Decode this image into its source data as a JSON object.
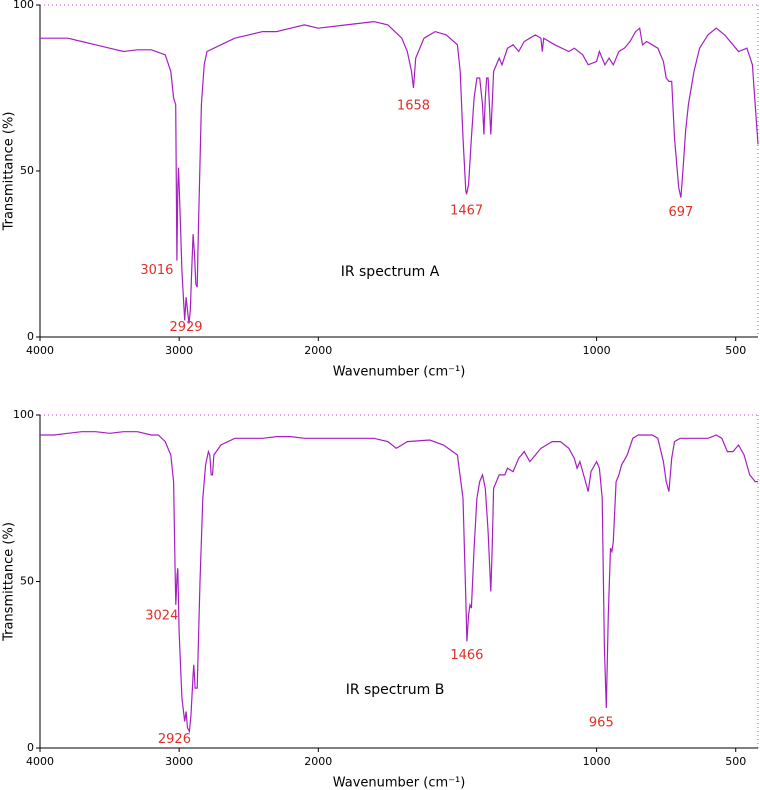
{
  "chart_data": [
    {
      "type": "line",
      "label": "IR spectrum A",
      "xlabel": "Wavenumber (cm⁻¹)",
      "ylabel": "Transmittance (%)",
      "color": "#a51fc2",
      "xlim": [
        4000,
        420
      ],
      "xticks": [
        4000,
        3000,
        2000,
        1000,
        500
      ],
      "x_scale_change": {
        "at": 2000,
        "factor": 2
      },
      "ylim": [
        0,
        100
      ],
      "yticks": [
        0,
        50,
        100
      ],
      "peak_labels": [
        3016,
        2929,
        1658,
        1467,
        697
      ],
      "x": [
        4000,
        3900,
        3800,
        3700,
        3600,
        3500,
        3400,
        3300,
        3200,
        3100,
        3060,
        3040,
        3025,
        3016,
        3010,
        3005,
        2995,
        2980,
        2960,
        2950,
        2940,
        2929,
        2920,
        2910,
        2900,
        2890,
        2880,
        2870,
        2860,
        2840,
        2820,
        2800,
        2700,
        2600,
        2500,
        2400,
        2300,
        2200,
        2100,
        2000,
        1900,
        1800,
        1750,
        1700,
        1680,
        1665,
        1658,
        1650,
        1620,
        1580,
        1540,
        1500,
        1490,
        1480,
        1470,
        1467,
        1460,
        1450,
        1440,
        1430,
        1420,
        1410,
        1405,
        1400,
        1395,
        1390,
        1385,
        1380,
        1375,
        1370,
        1350,
        1340,
        1320,
        1300,
        1280,
        1260,
        1240,
        1220,
        1200,
        1195,
        1190,
        1150,
        1100,
        1080,
        1050,
        1030,
        1000,
        990,
        970,
        955,
        940,
        920,
        900,
        880,
        860,
        845,
        835,
        820,
        800,
        780,
        760,
        750,
        740,
        730,
        720,
        705,
        697,
        690,
        680,
        670,
        650,
        630,
        600,
        570,
        540,
        510,
        490,
        460,
        440,
        420
      ],
      "values": [
        90,
        90,
        90,
        89,
        88,
        87,
        86,
        86.5,
        86.5,
        85,
        80,
        72,
        70,
        23,
        45,
        51,
        40,
        20,
        5,
        12,
        8,
        4,
        8,
        20,
        31,
        25,
        16,
        15,
        35,
        70,
        82,
        86,
        88,
        90,
        91,
        92,
        92,
        93,
        94,
        93,
        94,
        95,
        94,
        90,
        86,
        80,
        75,
        84,
        90,
        92,
        91,
        88,
        80,
        60,
        44,
        43,
        46,
        60,
        72,
        78,
        78,
        70,
        61,
        72,
        78,
        78,
        70,
        61,
        70,
        80,
        84,
        82,
        87,
        88,
        86,
        89,
        90,
        91,
        90,
        86,
        90,
        88,
        86,
        87,
        85,
        82,
        83,
        86,
        82,
        84,
        82,
        86,
        87,
        89,
        92,
        93,
        88,
        89,
        88,
        87,
        83,
        78,
        77,
        77,
        60,
        45,
        42,
        50,
        62,
        70,
        80,
        87,
        91,
        93,
        91,
        88,
        86,
        87,
        82,
        58
      ]
    },
    {
      "type": "line",
      "label": "IR spectrum B",
      "xlabel": "Wavenumber (cm⁻¹)",
      "ylabel": "Transmittance (%)",
      "color": "#a51fc2",
      "xlim": [
        4000,
        420
      ],
      "xticks": [
        4000,
        3000,
        2000,
        1000,
        500
      ],
      "x_scale_change": {
        "at": 2000,
        "factor": 2
      },
      "ylim": [
        0,
        100
      ],
      "yticks": [
        0,
        50,
        100
      ],
      "peak_labels": [
        3024,
        2926,
        1466,
        965
      ],
      "x": [
        4000,
        3900,
        3800,
        3700,
        3600,
        3500,
        3400,
        3300,
        3200,
        3150,
        3100,
        3060,
        3040,
        3030,
        3024,
        3015,
        3010,
        3000,
        2980,
        2960,
        2950,
        2940,
        2926,
        2915,
        2900,
        2895,
        2885,
        2870,
        2850,
        2830,
        2810,
        2790,
        2780,
        2770,
        2760,
        2750,
        2700,
        2600,
        2500,
        2400,
        2300,
        2200,
        2100,
        2000,
        1900,
        1800,
        1750,
        1720,
        1700,
        1680,
        1600,
        1550,
        1500,
        1480,
        1470,
        1466,
        1460,
        1455,
        1450,
        1440,
        1430,
        1420,
        1410,
        1400,
        1390,
        1380,
        1375,
        1370,
        1350,
        1330,
        1320,
        1300,
        1280,
        1260,
        1240,
        1220,
        1200,
        1180,
        1160,
        1130,
        1100,
        1080,
        1070,
        1060,
        1050,
        1040,
        1030,
        1020,
        1000,
        990,
        980,
        972,
        965,
        958,
        950,
        945,
        940,
        930,
        920,
        910,
        890,
        870,
        850,
        800,
        780,
        760,
        750,
        740,
        730,
        720,
        700,
        650,
        600,
        570,
        550,
        530,
        510,
        490,
        470,
        450,
        430,
        420
      ],
      "values": [
        94,
        94,
        94.5,
        95,
        95,
        94.5,
        95,
        95,
        94,
        94,
        92,
        88,
        80,
        55,
        43,
        52,
        54,
        35,
        15,
        8,
        11,
        6,
        5,
        10,
        22,
        25,
        18,
        18,
        50,
        75,
        85,
        89,
        88,
        82,
        82,
        88,
        91,
        93,
        93,
        93,
        93.5,
        93.5,
        93,
        93,
        93,
        93,
        92,
        90,
        91,
        92,
        92.5,
        91,
        88,
        75,
        45,
        32,
        40,
        43,
        42,
        60,
        75,
        80,
        82,
        78,
        65,
        47,
        60,
        78,
        82,
        82,
        84,
        83,
        87,
        89,
        86,
        88,
        90,
        91,
        92,
        92,
        90,
        87,
        84,
        86,
        83,
        80,
        77,
        83,
        86,
        84,
        75,
        30,
        12,
        40,
        60,
        59,
        62,
        80,
        82,
        85,
        88,
        93,
        94,
        94,
        93,
        86,
        80,
        77,
        87,
        92,
        93,
        93,
        93,
        94,
        93,
        89,
        89,
        91,
        88,
        82,
        80,
        80
      ]
    }
  ]
}
